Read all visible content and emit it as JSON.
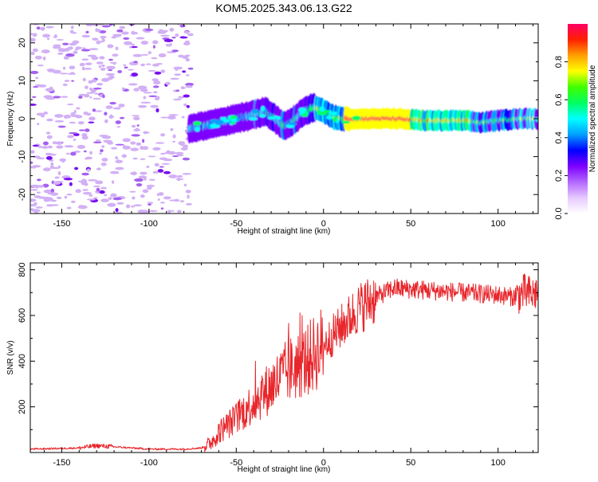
{
  "title": "KOM5.2025.343.06.13.G22",
  "chart_data": [
    {
      "type": "heatmap",
      "name": "spectrogram",
      "xlabel": "Height of straight line (km)",
      "ylabel": "Frequency (Hz)",
      "xlim": [
        -168,
        123
      ],
      "ylim": [
        -25,
        25
      ],
      "xticks": [
        -150,
        -100,
        -50,
        0,
        50,
        100
      ],
      "yticks": [
        -20,
        -10,
        0,
        10,
        20
      ],
      "noise_region_x": [
        -168,
        -76
      ],
      "ridge": {
        "x": [
          -76,
          -70,
          -60,
          -50,
          -40,
          -33,
          -28,
          -22,
          -16,
          -12,
          -8,
          -5,
          -2,
          2,
          5,
          10,
          20,
          40,
          60,
          80,
          90,
          100,
          110,
          123
        ],
        "hz": [
          -2.5,
          -2,
          -1,
          0,
          1,
          2,
          0,
          -2,
          0,
          1.5,
          2.5,
          3,
          2.5,
          1.5,
          0.5,
          0,
          0,
          0,
          -0.5,
          -0.5,
          -1,
          -0.5,
          0,
          0
        ]
      },
      "colorbar": {
        "label": "Normalized spectral amplitude",
        "range": [
          0,
          1
        ],
        "ticks": [
          "0.0",
          "0.2",
          "0.4",
          "0.6",
          "0.8"
        ],
        "colors": [
          "#ffffff",
          "#e6c8ff",
          "#b366ff",
          "#7d00ff",
          "#0000ff",
          "#00a0ff",
          "#00ffff",
          "#00ff60",
          "#40ff00",
          "#ffff00",
          "#ffa000",
          "#ff2000",
          "#ff0066"
        ]
      }
    },
    {
      "type": "line",
      "name": "snr",
      "xlabel": "Height of straight line (km)",
      "ylabel": "SNR (v/v)",
      "xlim": [
        -168,
        123
      ],
      "ylim": [
        0,
        830
      ],
      "xticks": [
        -150,
        -100,
        -50,
        0,
        50,
        100
      ],
      "yticks": [
        200,
        400,
        600,
        800
      ],
      "color": "#e8262b",
      "trend": {
        "x": [
          -168,
          -140,
          -130,
          -120,
          -100,
          -80,
          -70,
          -65,
          -60,
          -50,
          -40,
          -30,
          -20,
          -10,
          0,
          10,
          20,
          30,
          40,
          60,
          80,
          100,
          110,
          115,
          120,
          123
        ],
        "snr": [
          15,
          20,
          30,
          25,
          15,
          15,
          20,
          40,
          90,
          150,
          220,
          290,
          360,
          400,
          470,
          550,
          630,
          680,
          720,
          710,
          700,
          690,
          680,
          700,
          690,
          710
        ]
      }
    }
  ]
}
